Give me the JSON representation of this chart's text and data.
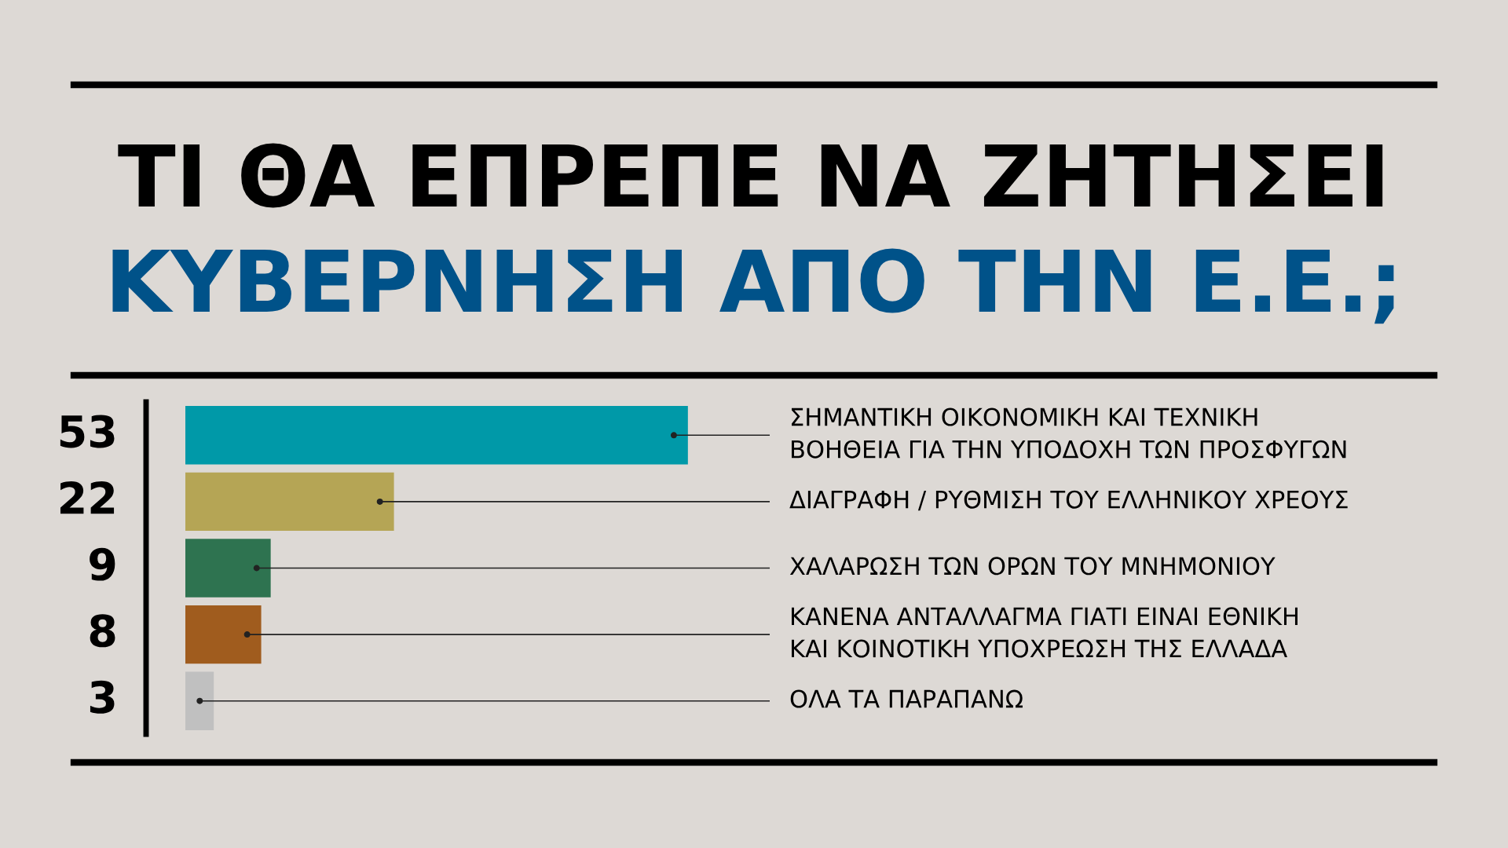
{
  "chart_data": {
    "type": "bar",
    "orientation": "horizontal",
    "title": "ΤΙ ΘΑ ΕΠΡΕΠΕ ΝΑ ΖΗΤΗΣΕΙ",
    "subtitle": "ΚΥΒΕΡΝΗΣΗ ΑΠΟ ΤΗΝ Ε.Ε.;",
    "categories": [
      "ΣΗΜΑΝΤΙΚΗ ΟΙΚΟΝΟΜΙΚΗ ΚΑΙ ΤΕΧΝΙΚΗ\nΒΟΗΘΕΙΑ ΓΙΑ ΤΗΝ ΥΠΟΔΟΧΗ ΤΩΝ ΠΡΟΣΦΥΓΩΝ",
      "ΔΙΑΓΡΑΦΗ / ΡΥΘΜΙΣΗ ΤΟΥ ΕΛΛΗΝΙΚΟΥ ΧΡΕΟΥΣ",
      "ΧΑΛΑΡΩΣΗ ΤΩΝ ΟΡΩΝ ΤΟΥ ΜΝΗΜΟΝΙΟΥ",
      "ΚΑΝΕΝΑ ΑΝΤΑΛΛΑΓΜΑ ΓΙΑΤΙ ΕΙΝΑΙ ΕΘΝΙΚΗ\nΚΑΙ ΚΟΙΝΟΤΙΚΗ ΥΠΟΧΡΕΩΣΗ ΤΗΣ ΕΛΛΑΔΑ",
      "ΟΛΑ ΤΑ ΠΑΡΑΠΑΝΩ"
    ],
    "values": [
      53,
      22,
      9,
      8,
      3
    ],
    "colors": [
      "#0099a8",
      "#b5a555",
      "#2e7350",
      "#a05c1e",
      "#c0c0c0"
    ],
    "data_labels": true
  }
}
